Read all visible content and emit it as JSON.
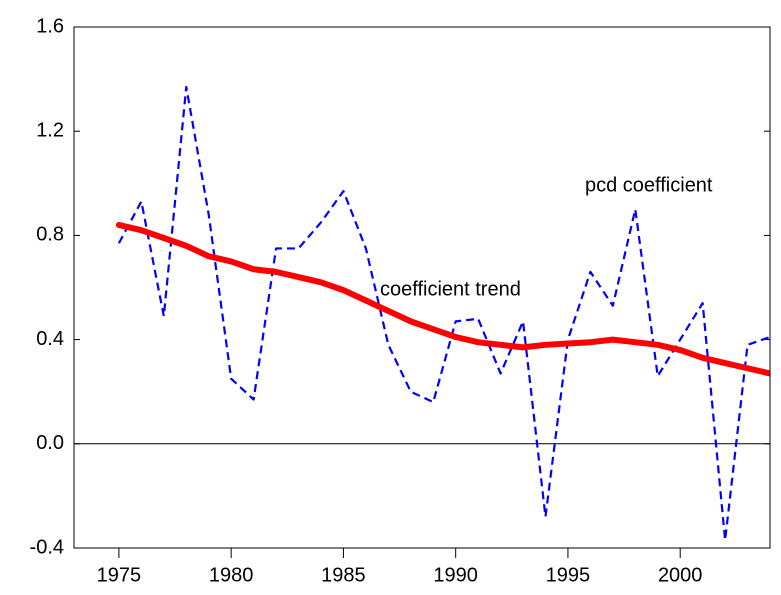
{
  "chart_data": {
    "type": "line",
    "x": [
      1975,
      1976,
      1977,
      1978,
      1979,
      1980,
      1981,
      1982,
      1983,
      1984,
      1985,
      1986,
      1987,
      1988,
      1989,
      1990,
      1991,
      1992,
      1993,
      1994,
      1995,
      1996,
      1997,
      1998,
      1999,
      2000,
      2001,
      2002,
      2003,
      2004
    ],
    "series": [
      {
        "name": "pcd coefficient",
        "color": "#0000ff",
        "dashed": true,
        "values": [
          0.77,
          0.93,
          0.49,
          1.37,
          0.88,
          0.25,
          0.17,
          0.75,
          0.75,
          0.85,
          0.97,
          0.75,
          0.38,
          0.2,
          0.16,
          0.47,
          0.48,
          0.27,
          0.47,
          -0.28,
          0.4,
          0.66,
          0.53,
          0.9,
          0.26,
          0.4,
          0.54,
          -0.37,
          0.38,
          0.41
        ]
      },
      {
        "name": "coefficient trend",
        "color": "#ff0000",
        "dashed": false,
        "values": [
          0.84,
          0.82,
          0.79,
          0.76,
          0.72,
          0.7,
          0.67,
          0.66,
          0.64,
          0.62,
          0.59,
          0.55,
          0.51,
          0.47,
          0.44,
          0.41,
          0.39,
          0.38,
          0.37,
          0.38,
          0.385,
          0.39,
          0.4,
          0.39,
          0.38,
          0.36,
          0.33,
          0.31,
          0.29,
          0.27
        ]
      }
    ],
    "xlim": [
      1973,
      2004
    ],
    "xticks": [
      1975,
      1980,
      1985,
      1990,
      1995,
      2000
    ],
    "ylim": [
      -0.4,
      1.6
    ],
    "yticks": [
      -0.4,
      {
        "value": 0,
        "label": "0.0"
      },
      0.4,
      0.8,
      1.2,
      1.6
    ],
    "zero_line": true
  }
}
